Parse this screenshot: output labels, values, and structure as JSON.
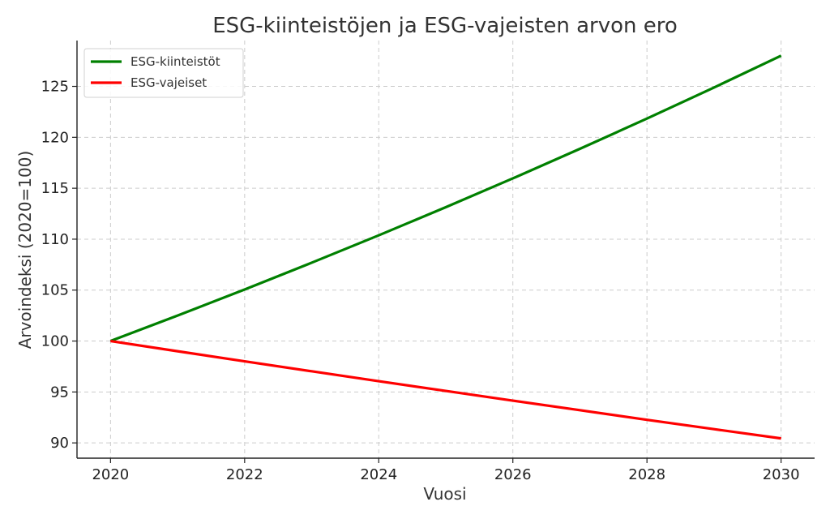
{
  "chart_data": {
    "type": "line",
    "title": "ESG-kiinteistöjen ja ESG-vajeisten arvon ero",
    "xlabel": "Vuosi",
    "ylabel": "Arvoindeksi (2020=100)",
    "x": [
      2020,
      2021,
      2022,
      2023,
      2024,
      2025,
      2026,
      2027,
      2028,
      2029,
      2030
    ],
    "xlim": [
      2019.5,
      2030.5
    ],
    "ylim": [
      88.5,
      129.5
    ],
    "xticks": [
      2020,
      2022,
      2024,
      2026,
      2028,
      2030
    ],
    "yticks": [
      90,
      95,
      100,
      105,
      110,
      115,
      120,
      125
    ],
    "xtick_labels": [
      "2020",
      "2022",
      "2024",
      "2026",
      "2028",
      "2030"
    ],
    "ytick_labels": [
      "90",
      "95",
      "100",
      "105",
      "110",
      "115",
      "120",
      "125"
    ],
    "grid": true,
    "legend": "top-left",
    "series": [
      {
        "name": "ESG-kiinteistöt",
        "color": "#008000",
        "values": [
          100.0,
          102.5,
          105.06,
          107.69,
          110.38,
          113.14,
          115.97,
          118.87,
          121.84,
          124.89,
          128.01
        ]
      },
      {
        "name": "ESG-vajeiset",
        "color": "#ff0000",
        "values": [
          100.0,
          99.0,
          98.01,
          97.03,
          96.06,
          95.1,
          94.15,
          93.21,
          92.27,
          91.35,
          90.44
        ]
      }
    ]
  }
}
